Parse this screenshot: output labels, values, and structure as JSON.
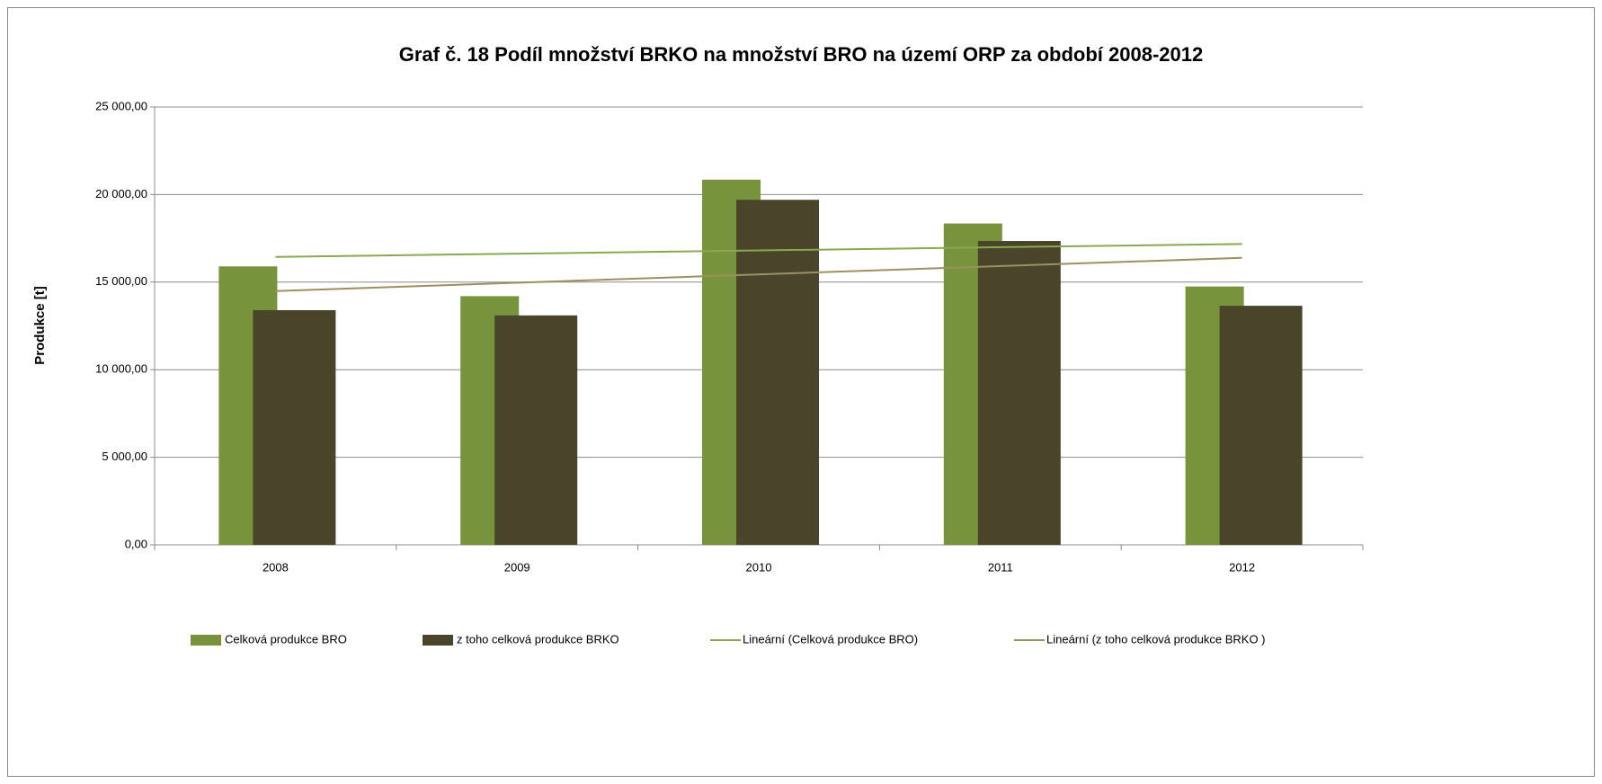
{
  "chart_data": {
    "type": "bar",
    "title": "Graf č. 18 Podíl množství BRKO na množství BRO na území ORP za období 2008-2012",
    "y_label": "Produkce [t]",
    "categories": [
      "2008",
      "2009",
      "2010",
      "2011",
      "2012"
    ],
    "series": [
      {
        "name": "Celková produkce BRO",
        "color": "#77933c",
        "values": [
          15900,
          14200,
          20850,
          18350,
          14750
        ]
      },
      {
        "name": "z toho celková produkce BRKO",
        "color": "#4a452a",
        "values": [
          13400,
          13100,
          19700,
          17350,
          13650
        ]
      }
    ],
    "trendlines": [
      {
        "name": "Lineární (Celková produkce BRO)",
        "color": "#8aa852"
      },
      {
        "name": "Lineární (z toho celková produkce BRKO )",
        "color": "#9c9060"
      }
    ],
    "ylim": [
      0,
      25000
    ],
    "yticks": [
      {
        "value": 0,
        "label": "0,00"
      },
      {
        "value": 5000,
        "label": "5 000,00"
      },
      {
        "value": 10000,
        "label": "10 000,00"
      },
      {
        "value": 15000,
        "label": "15 000,00"
      },
      {
        "value": 20000,
        "label": "20 000,00"
      },
      {
        "value": 25000,
        "label": "25 000,00"
      }
    ],
    "grid": true,
    "legend": "bottom"
  }
}
